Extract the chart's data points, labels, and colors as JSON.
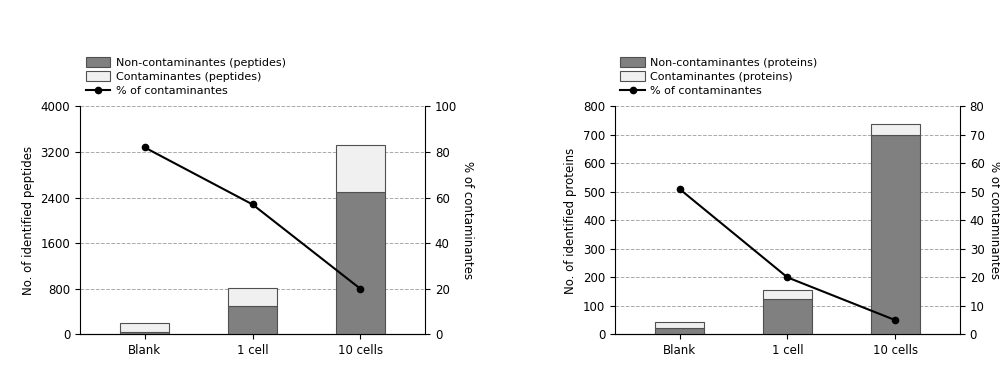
{
  "left": {
    "categories": [
      "Blank",
      "1 cell",
      "10 cells"
    ],
    "non_contaminants": [
      50,
      500,
      2500
    ],
    "contaminants": [
      150,
      310,
      830
    ],
    "pct_contaminants": [
      82,
      57,
      20
    ],
    "ylabel_left": "No. of identified peptides",
    "ylabel_right": "% of contaminantes",
    "ylim_left": [
      0,
      4000
    ],
    "ylim_right": [
      0,
      100
    ],
    "yticks_left": [
      0,
      800,
      1600,
      2400,
      3200,
      4000
    ],
    "yticks_right": [
      0,
      20,
      40,
      60,
      80,
      100
    ],
    "legend_nc": "Non-contaminantes (peptides)",
    "legend_c": "Contaminantes (peptides)",
    "legend_pct": "% of contaminantes"
  },
  "right": {
    "categories": [
      "Blank",
      "1 cell",
      "10 cells"
    ],
    "non_contaminants": [
      22,
      125,
      700
    ],
    "contaminants": [
      20,
      32,
      37
    ],
    "pct_contaminants": [
      51,
      20,
      5
    ],
    "ylabel_left": "No. of identified proteins",
    "ylabel_right": "% of contaminantes",
    "ylim_left": [
      0,
      800
    ],
    "ylim_right": [
      0,
      80
    ],
    "yticks_left": [
      0,
      100,
      200,
      300,
      400,
      500,
      600,
      700,
      800
    ],
    "yticks_right": [
      0,
      10,
      20,
      30,
      40,
      50,
      60,
      70,
      80
    ],
    "legend_nc": "Non-contaminantes (proteins)",
    "legend_c": "Contaminantes (proteins)",
    "legend_pct": "% of contaminantes"
  },
  "bar_color_nc": "#808080",
  "bar_color_c": "#f0f0f0",
  "bar_edgecolor": "#505050",
  "line_color": "#000000",
  "bar_width": 0.45,
  "background_color": "#ffffff",
  "legend_fontsize": 8.0,
  "tick_fontsize": 8.5,
  "ylabel_fontsize": 8.5
}
